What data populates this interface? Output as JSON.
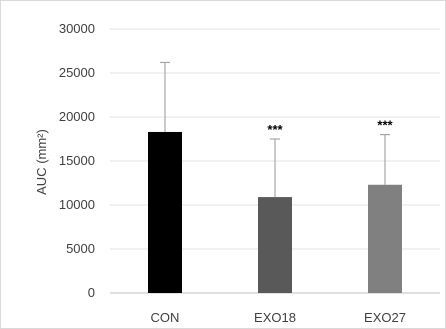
{
  "chart_data": {
    "type": "bar",
    "categories": [
      "CON",
      "EXO18",
      "EXO27"
    ],
    "values": [
      18300,
      10900,
      12300
    ],
    "error_bars": [
      7900,
      6600,
      5700
    ],
    "significance": [
      "",
      "***",
      "***"
    ],
    "colors": [
      "#000000",
      "#595959",
      "#808080"
    ],
    "ylabel": "AUC (mm²)",
    "ylim": [
      0,
      30000
    ],
    "yticks": [
      "0",
      "5000",
      "10000",
      "15000",
      "20000",
      "25000",
      "30000"
    ],
    "grid": true,
    "legend": "none"
  }
}
